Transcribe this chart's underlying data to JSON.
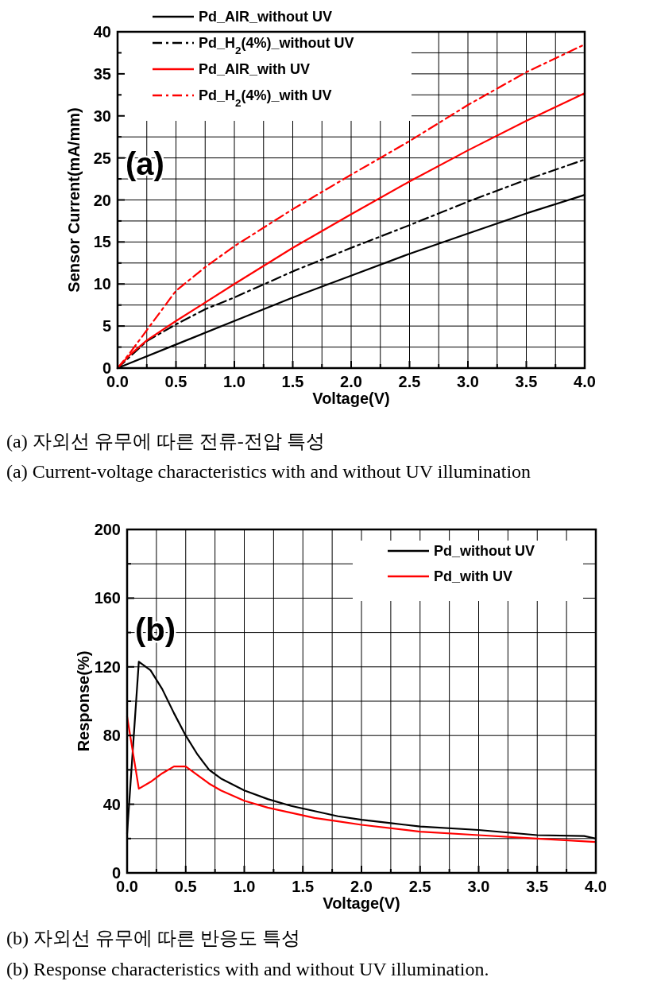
{
  "chart_data": [
    {
      "type": "line",
      "xlabel": "Voltage(V)",
      "ylabel": "Sensor Current(mA/mm)",
      "xlim": [
        0,
        4
      ],
      "ylim": [
        0,
        40
      ],
      "xticks": [
        {
          "value": 0,
          "label": "0.0"
        },
        {
          "value": 0.25,
          "label": null
        },
        {
          "value": 0.5,
          "label": "0.5"
        },
        {
          "value": 0.75,
          "label": null
        },
        {
          "value": 1,
          "label": "1.0"
        },
        {
          "value": 1.25,
          "label": null
        },
        {
          "value": 1.5,
          "label": "1.5"
        },
        {
          "value": 1.75,
          "label": null
        },
        {
          "value": 2,
          "label": "2.0"
        },
        {
          "value": 2.25,
          "label": null
        },
        {
          "value": 2.5,
          "label": "2.5"
        },
        {
          "value": 2.75,
          "label": null
        },
        {
          "value": 3,
          "label": "3.0"
        },
        {
          "value": 3.25,
          "label": null
        },
        {
          "value": 3.5,
          "label": "3.5"
        },
        {
          "value": 3.75,
          "label": null
        },
        {
          "value": 4,
          "label": "4.0"
        }
      ],
      "yticks": [
        0,
        {
          "value": 2.5,
          "label": null
        },
        5,
        {
          "value": 7.5,
          "label": null
        },
        10,
        {
          "value": 12.5,
          "label": null
        },
        15,
        {
          "value": 17.5,
          "label": null
        },
        20,
        {
          "value": 22.5,
          "label": null
        },
        25,
        {
          "value": 27.5,
          "label": null
        },
        30,
        {
          "value": 32.5,
          "label": null
        },
        35,
        {
          "value": 37.5,
          "label": null
        },
        40
      ],
      "grid": true,
      "legend": "top left",
      "series": [
        {
          "name": "Pd_AIR_without UV",
          "color": "#000000",
          "line_style": "solid",
          "x": [
            0,
            0.5,
            1,
            1.5,
            2,
            2.5,
            3,
            3.5,
            4
          ],
          "values": [
            0,
            2.8,
            5.6,
            8.4,
            11,
            13.6,
            16,
            18.4,
            20.6
          ]
        },
        {
          "name": "Pd_H$_{2}$(4%)_without UV",
          "color": "#000000",
          "line_style": "dashdot",
          "x": [
            0,
            0.25,
            0.5,
            0.75,
            1,
            1.5,
            2,
            2.5,
            3,
            3.5,
            4
          ],
          "values": [
            0,
            3.2,
            5.2,
            7,
            8.4,
            11.5,
            14.3,
            17,
            19.8,
            22.4,
            24.8
          ]
        },
        {
          "name": "Pd_AIR_with UV",
          "color": "#ff0000",
          "line_style": "solid",
          "x": [
            0,
            0.1,
            0.25,
            0.5,
            1,
            1.5,
            2,
            2.5,
            3,
            3.5,
            4
          ],
          "values": [
            0,
            1.5,
            3.3,
            5.6,
            10,
            14.3,
            18.3,
            22.2,
            25.9,
            29.4,
            32.7
          ]
        },
        {
          "name": "Pd_H$_{2}$(4%)_with UV",
          "color": "#ff0000",
          "line_style": "dashdot",
          "x": [
            0,
            0.1,
            0.25,
            0.5,
            0.75,
            1,
            1.5,
            2,
            2.5,
            3,
            3.5,
            4
          ],
          "values": [
            0,
            1.7,
            4.5,
            9.2,
            12,
            14.5,
            18.9,
            23,
            27,
            31.3,
            35.2,
            38.5
          ]
        }
      ],
      "annotations": [
        "(a)",
        "(a) 자외선 유무에 따른 전류-전압 특성",
        "(a) Current-voltage characteristics with and without UV illumination"
      ]
    },
    {
      "type": "line",
      "xlabel": "Voltage(V)",
      "ylabel": "Response(%)",
      "xlim": [
        0,
        4
      ],
      "ylim": [
        0,
        200
      ],
      "xticks": [
        {
          "value": 0,
          "label": "0.0"
        },
        {
          "value": 0.25,
          "label": null
        },
        {
          "value": 0.5,
          "label": "0.5"
        },
        {
          "value": 0.75,
          "label": null
        },
        {
          "value": 1,
          "label": "1.0"
        },
        {
          "value": 1.25,
          "label": null
        },
        {
          "value": 1.5,
          "label": "1.5"
        },
        {
          "value": 1.75,
          "label": null
        },
        {
          "value": 2,
          "label": "2.0"
        },
        {
          "value": 2.25,
          "label": null
        },
        {
          "value": 2.5,
          "label": "2.5"
        },
        {
          "value": 2.75,
          "label": null
        },
        {
          "value": 3,
          "label": "3.0"
        },
        {
          "value": 3.25,
          "label": null
        },
        {
          "value": 3.5,
          "label": "3.5"
        },
        {
          "value": 3.75,
          "label": null
        },
        {
          "value": 4,
          "label": "4.0"
        }
      ],
      "yticks": [
        0,
        {
          "value": 20,
          "label": null
        },
        40,
        {
          "value": 60,
          "label": null
        },
        80,
        {
          "value": 100,
          "label": null
        },
        120,
        {
          "value": 140,
          "label": null
        },
        160,
        {
          "value": 180,
          "label": null
        },
        200
      ],
      "grid": true,
      "legend": "top right",
      "series": [
        {
          "name": "Pd_without UV",
          "color": "#000000",
          "line_style": "solid",
          "x": [
            0,
            0.1,
            0.2,
            0.3,
            0.4,
            0.5,
            0.6,
            0.7,
            0.8,
            1,
            1.2,
            1.4,
            1.6,
            1.8,
            2,
            2.25,
            2.5,
            3,
            3.5,
            3.9,
            4
          ],
          "values": [
            23,
            123,
            118,
            107,
            93,
            80,
            69,
            60,
            55,
            48,
            43,
            39,
            36,
            33,
            31,
            29,
            27,
            25,
            22,
            21.5,
            20
          ]
        },
        {
          "name": "Pd_with UV",
          "color": "#ff0000",
          "line_style": "solid",
          "x": [
            0,
            0.1,
            0.2,
            0.3,
            0.4,
            0.5,
            0.6,
            0.7,
            0.8,
            1,
            1.2,
            1.4,
            1.6,
            1.8,
            2,
            2.5,
            3,
            3.5,
            4
          ],
          "values": [
            91,
            49,
            53,
            58,
            62,
            62,
            57,
            52,
            48,
            42,
            38,
            35,
            32,
            30,
            28,
            24,
            22,
            20,
            18
          ]
        }
      ],
      "annotations": [
        "(b)",
        "(b) 자외선 유무에 따른 반응도 특성",
        "(b) Response characteristics with and without UV illumination."
      ]
    }
  ]
}
